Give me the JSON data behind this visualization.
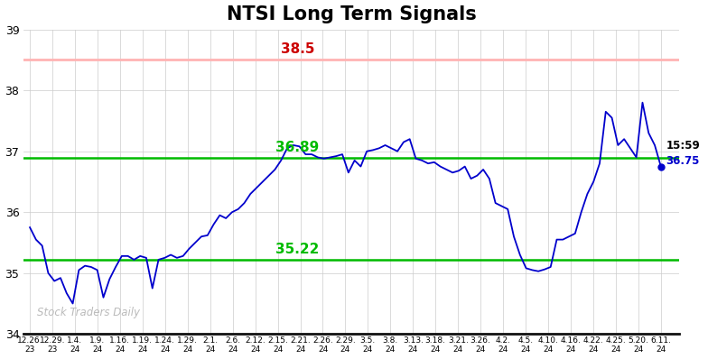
{
  "title": "NTSI Long Term Signals",
  "title_fontsize": 15,
  "title_fontweight": "bold",
  "ylim": [
    34,
    39
  ],
  "yticks": [
    34,
    35,
    36,
    37,
    38,
    39
  ],
  "resistance_line": 38.5,
  "resistance_color": "#ffb3b3",
  "resistance_label": "38.5",
  "resistance_label_color": "#cc0000",
  "support1_line": 36.89,
  "support1_color": "#00bb00",
  "support1_label": "36.89",
  "support2_line": 35.22,
  "support2_color": "#00bb00",
  "support2_label": "35.22",
  "line_color": "#0000cc",
  "last_price": "36.75",
  "last_time": "15:59",
  "last_label_color_time": "#000000",
  "last_label_color_price": "#0000cc",
  "watermark": "Stock Traders Daily",
  "watermark_color": "#bbbbbb",
  "bg_color": "#ffffff",
  "grid_color": "#cccccc",
  "xtick_labels": [
    "12.26.23",
    "12.29.23",
    "1.4.24",
    "1.9.24",
    "1.16.24",
    "1.19.24",
    "1.24.24",
    "1.29.24",
    "2.1.24",
    "2.6.24",
    "2.12.24",
    "2.15.24",
    "2.21.24",
    "2.26.24",
    "2.29.24",
    "3.5.24",
    "3.8.24",
    "3.13.24",
    "3.18.24",
    "3.21.24",
    "3.26.24",
    "4.2.24",
    "4.5.24",
    "4.10.24",
    "4.16.24",
    "4.22.24",
    "4.25.24",
    "5.20.24",
    "6.11.24"
  ],
  "prices": [
    35.75,
    35.55,
    35.45,
    35.0,
    34.87,
    34.92,
    34.67,
    34.5,
    35.05,
    35.12,
    35.1,
    35.05,
    34.6,
    34.9,
    35.1,
    35.28,
    35.28,
    35.22,
    35.28,
    35.25,
    34.75,
    35.22,
    35.25,
    35.3,
    35.25,
    35.28,
    35.4,
    35.5,
    35.6,
    35.62,
    35.8,
    35.95,
    35.9,
    36.0,
    36.05,
    36.15,
    36.3,
    36.4,
    36.5,
    36.6,
    36.7,
    36.85,
    37.05,
    37.1,
    37.08,
    36.95,
    36.95,
    36.9,
    36.88,
    36.9,
    36.92,
    36.95,
    36.65,
    36.85,
    36.75,
    37.0,
    37.02,
    37.05,
    37.1,
    37.05,
    37.0,
    37.15,
    37.2,
    36.88,
    36.85,
    36.8,
    36.82,
    36.75,
    36.7,
    36.65,
    36.68,
    36.75,
    36.55,
    36.6,
    36.7,
    36.55,
    36.15,
    36.1,
    36.05,
    35.6,
    35.3,
    35.08,
    35.05,
    35.03,
    35.06,
    35.1,
    35.55,
    35.55,
    35.6,
    35.65,
    36.0,
    36.3,
    36.5,
    36.8,
    37.65,
    37.55,
    37.1,
    37.2,
    37.05,
    36.9,
    37.8,
    37.3,
    37.1,
    36.75
  ]
}
